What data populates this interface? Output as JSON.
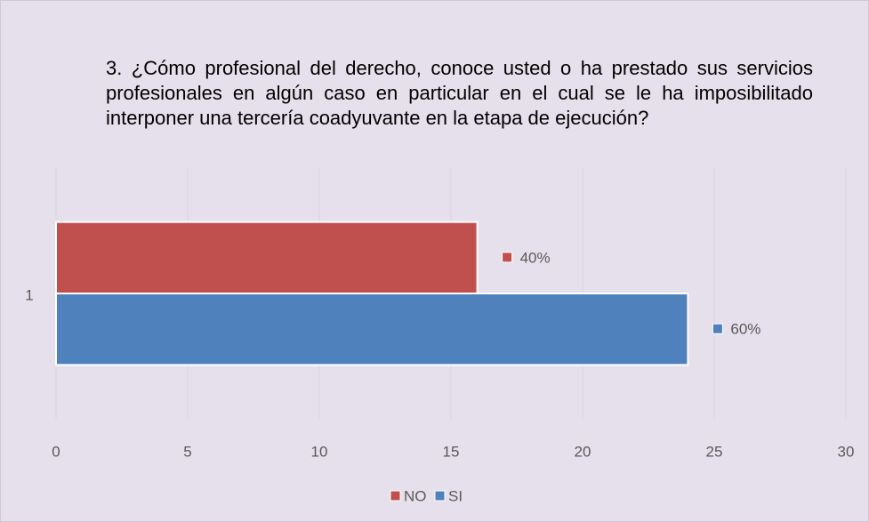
{
  "chart_data": {
    "type": "hbar",
    "title": "3. ¿Cómo profesional del derecho, conoce usted o ha prestado sus servicios profesionales en algún caso en particular en el cual se le ha imposibilitado interponer una tercería coadyuvante en la etapa de ejecución?",
    "categories": [
      "1"
    ],
    "series": [
      {
        "name": "NO",
        "color": "#c0504d",
        "values": [
          16
        ],
        "percent_labels": [
          "40%"
        ]
      },
      {
        "name": "SI",
        "color": "#4f81bd",
        "values": [
          24
        ],
        "percent_labels": [
          "60%"
        ]
      }
    ],
    "xlim": [
      0,
      30
    ],
    "xticks": [
      0,
      5,
      10,
      15,
      20,
      25,
      30
    ],
    "grid": true,
    "legend": "bottom"
  }
}
